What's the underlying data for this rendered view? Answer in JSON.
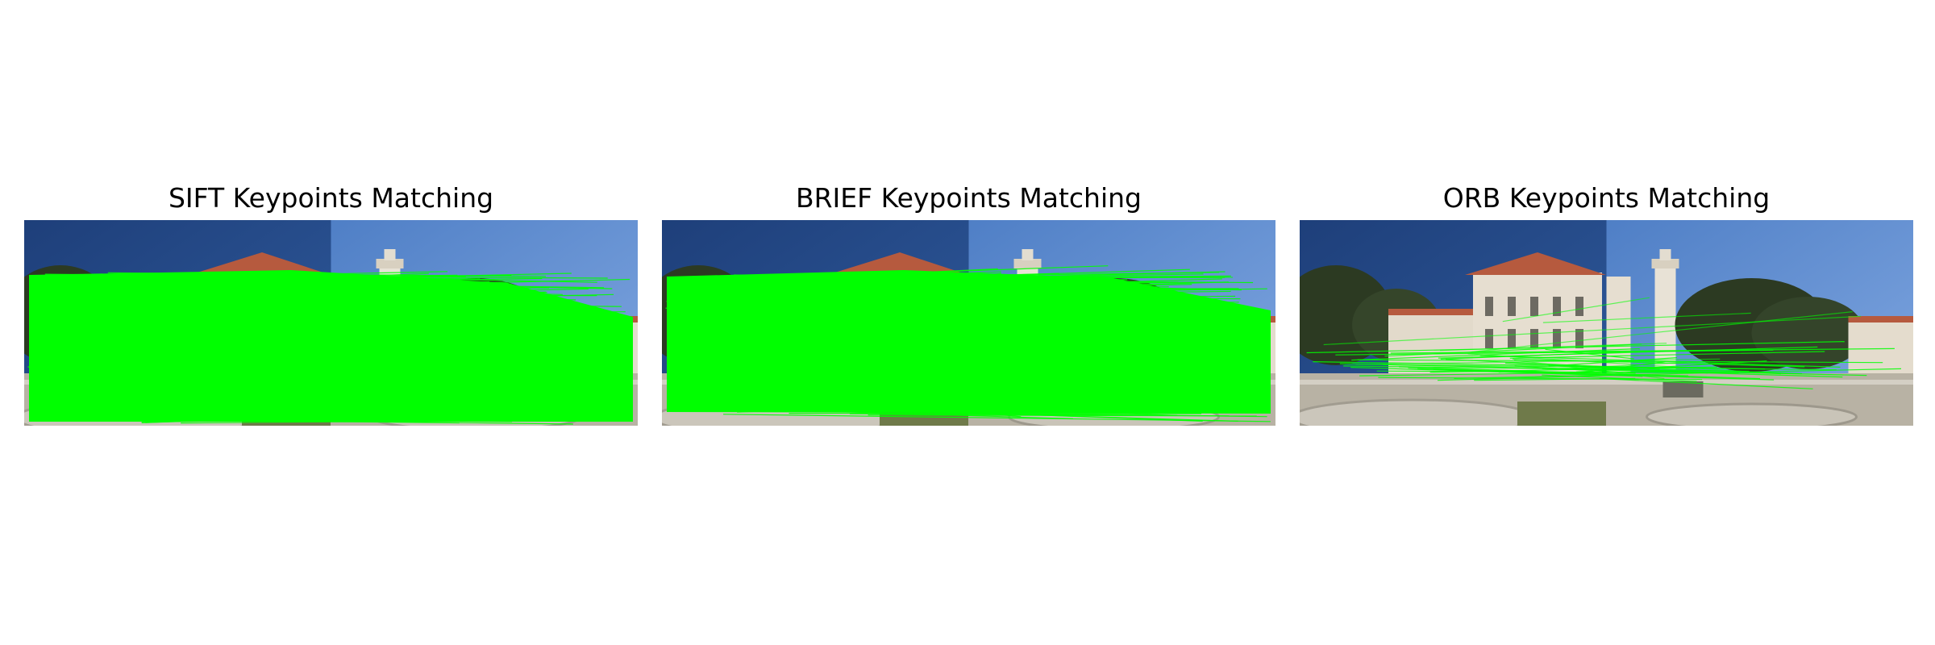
{
  "panels": [
    {
      "title": "SIFT Keypoints Matching",
      "method": "SIFT",
      "match_density": "very-dense"
    },
    {
      "title": "BRIEF Keypoints Matching",
      "method": "BRIEF",
      "match_density": "very-dense"
    },
    {
      "title": "ORB Keypoints Matching",
      "method": "ORB",
      "match_density": "sparse"
    }
  ],
  "colors": {
    "match_line": "#00ff00",
    "sky_left": "#2f5a9c",
    "sky_right": "#7fa6e0",
    "building": "#e6ded0",
    "roof": "#b65a3e",
    "tree": "#2c3a22",
    "ground": "#b8b2a4",
    "grass": "#6f7a4a"
  }
}
